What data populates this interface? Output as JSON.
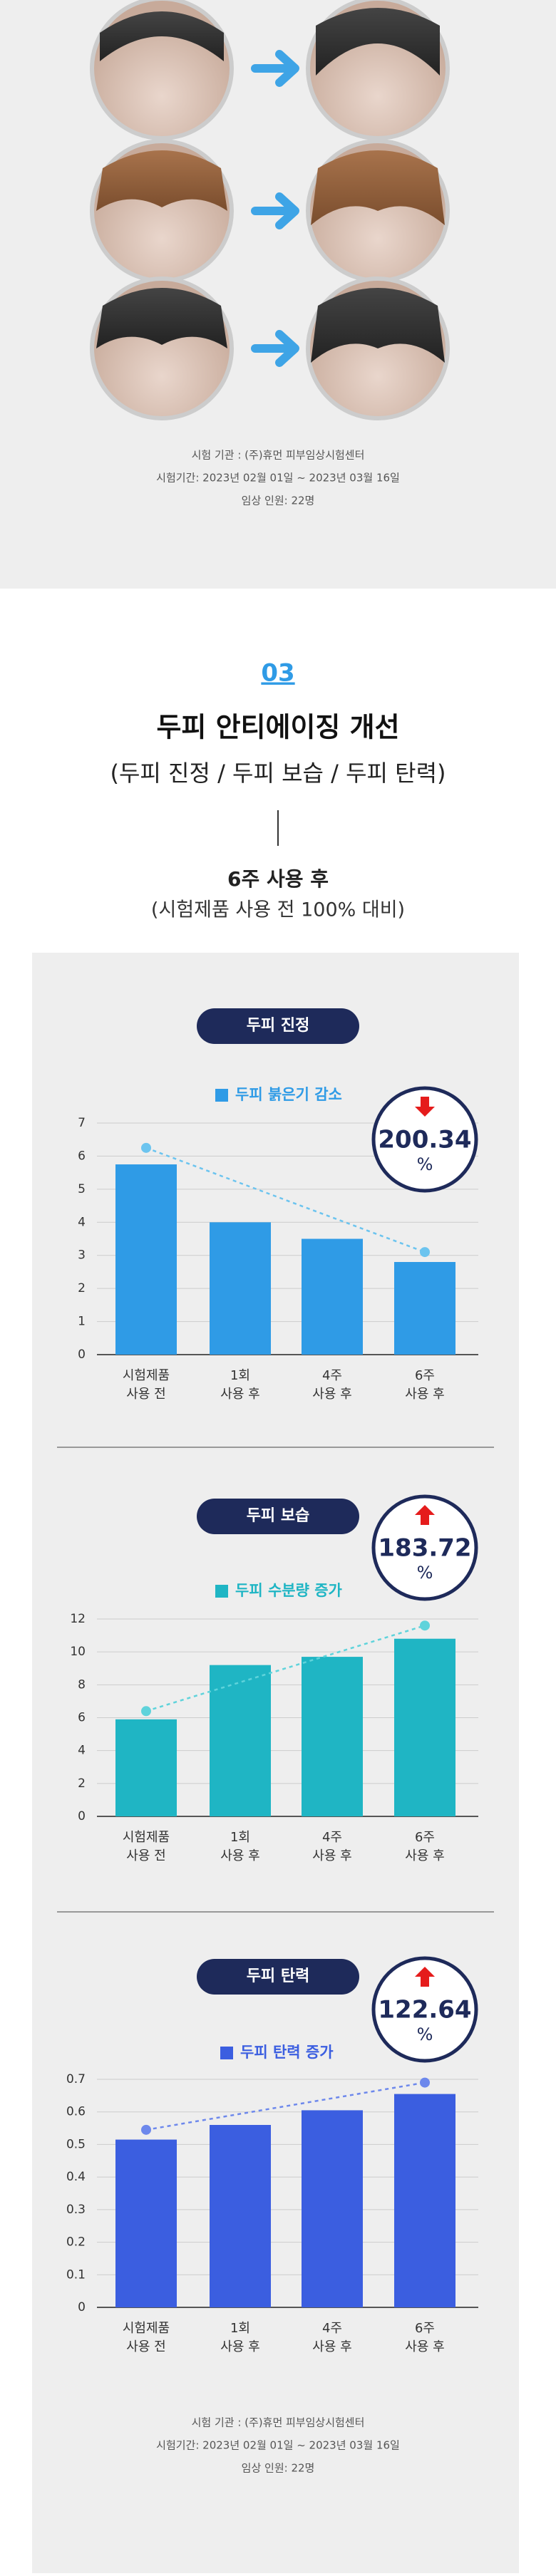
{
  "top_info": {
    "institution": "시험 기관 : (주)휴먼 피부임상시험센터",
    "period": "시험기간: 2023년 02월 01일 ~ 2023년 03월 16일",
    "subjects": "임상 인원: 22명"
  },
  "header": {
    "number": "03",
    "title": "두피 안티에이징 개선",
    "subtitle": "(두피 진정 / 두피 보습 / 두피 탄력)",
    "period": "6주 사용 후",
    "basis": "(시험제품 사용 전 100% 대비)"
  },
  "chart_data": [
    {
      "type": "bar",
      "title": "두피 진정",
      "categories": [
        [
          "시험제품",
          "사용 전"
        ],
        [
          "1회",
          "사용 후"
        ],
        [
          "4주",
          "사용 후"
        ],
        [
          "6주",
          "사용 후"
        ]
      ],
      "series": [
        {
          "name": "두피 붉은기 감소",
          "color": "#2f9be6",
          "values": [
            5.75,
            4.0,
            3.5,
            2.8
          ]
        }
      ],
      "trend_line": {
        "start": 6.25,
        "end": 3.1,
        "color": "#6cc4ef"
      },
      "badge": {
        "value": "200.34",
        "unit": "%",
        "direction": "down"
      },
      "ylim": [
        0,
        7
      ],
      "yticks": [
        0,
        1,
        2,
        3,
        4,
        5,
        6,
        7
      ],
      "grid": true
    },
    {
      "type": "bar",
      "title": "두피 보습",
      "categories": [
        [
          "시험제품",
          "사용 전"
        ],
        [
          "1회",
          "사용 후"
        ],
        [
          "4주",
          "사용 후"
        ],
        [
          "6주",
          "사용 후"
        ]
      ],
      "series": [
        {
          "name": "두피 수분량 증가",
          "color": "#1fb5c4",
          "values": [
            5.9,
            9.2,
            9.7,
            10.8
          ]
        }
      ],
      "trend_line": {
        "start": 6.4,
        "end": 11.6,
        "color": "#5fd3db"
      },
      "badge": {
        "value": "183.72",
        "unit": "%",
        "direction": "up"
      },
      "ylim": [
        0,
        12
      ],
      "yticks": [
        0,
        2,
        4,
        6,
        8,
        10,
        12
      ],
      "grid": true
    },
    {
      "type": "bar",
      "title": "두피 탄력",
      "categories": [
        [
          "시험제품",
          "사용 전"
        ],
        [
          "1회",
          "사용 후"
        ],
        [
          "4주",
          "사용 후"
        ],
        [
          "6주",
          "사용 후"
        ]
      ],
      "series": [
        {
          "name": "두피 탄력 증가",
          "color": "#3b5ee0",
          "values": [
            0.515,
            0.56,
            0.605,
            0.655
          ]
        }
      ],
      "trend_line": {
        "start": 0.545,
        "end": 0.69,
        "color": "#6d88ec"
      },
      "badge": {
        "value": "122.64",
        "unit": "%",
        "direction": "up"
      },
      "ylim": [
        0,
        0.7
      ],
      "yticks": [
        0,
        0.1,
        0.2,
        0.3,
        0.4,
        0.5,
        0.6,
        0.7
      ],
      "grid": true
    }
  ],
  "bottom_info": {
    "institution": "시험 기관 : (주)휴먼 피부임상시험센터",
    "period": "시험기간: 2023년 02월 01일 ~ 2023년 03월 16일",
    "subjects": "임상 인원: 22명"
  }
}
